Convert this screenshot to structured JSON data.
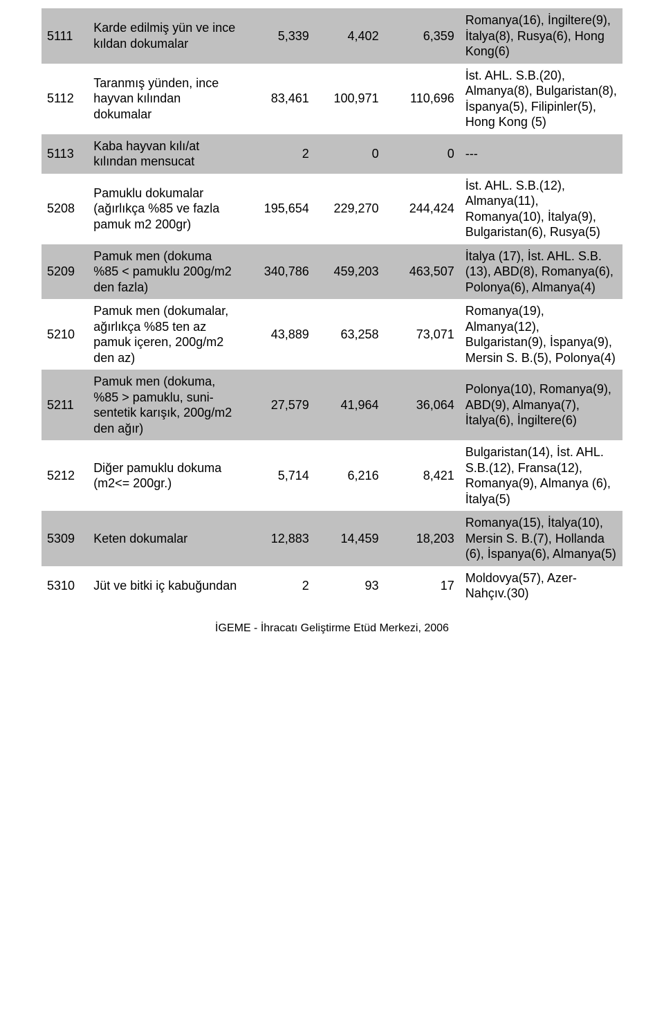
{
  "table": {
    "columns_count": 6,
    "col_widths_pct": [
      8,
      27,
      12,
      12,
      13,
      28
    ],
    "col_align": [
      "left",
      "left",
      "right",
      "right",
      "right",
      "left"
    ],
    "row_bg_colors": {
      "normal": "#ffffff",
      "alt": "#c0c0c0"
    },
    "text_color": "#000000",
    "font_size_pt": 14,
    "rows": [
      {
        "alt": true,
        "code": "5111",
        "desc": "Karde edilmiş yün ve ince kıldan dokumalar",
        "v1": "5,339",
        "v2": "4,402",
        "v3": "6,359",
        "notes": "Romanya(16), İngiltere(9), İtalya(8), Rusya(6), Hong Kong(6)"
      },
      {
        "alt": false,
        "code": "5112",
        "desc": "Taranmış yünden, ince hayvan kılından dokumalar",
        "v1": "83,461",
        "v2": "100,971",
        "v3": "110,696",
        "notes": "İst. AHL. S.B.(20), Almanya(8), Bulgaristan(8), İspanya(5), Filipinler(5), Hong Kong (5)"
      },
      {
        "alt": true,
        "code": "5113",
        "desc": "Kaba hayvan kılı/at kılından mensucat",
        "v1": "2",
        "v2": "0",
        "v3": "0",
        "notes": "---"
      },
      {
        "alt": false,
        "code": "5208",
        "desc": "Pamuklu dokumalar (ağırlıkça %85 ve fazla pamuk m2 200gr)",
        "v1": "195,654",
        "v2": "229,270",
        "v3": "244,424",
        "notes": "İst. AHL. S.B.(12), Almanya(11), Romanya(10), İtalya(9), Bulgaristan(6), Rusya(5)"
      },
      {
        "alt": true,
        "code": "5209",
        "desc": "Pamuk men (dokuma %85 < pamuklu 200g/m2 den fazla)",
        "v1": "340,786",
        "v2": "459,203",
        "v3": "463,507",
        "notes": "İtalya (17), İst. AHL. S.B.(13), ABD(8), Romanya(6), Polonya(6), Almanya(4)"
      },
      {
        "alt": false,
        "code": "5210",
        "desc": "Pamuk men (dokumalar, ağırlıkça %85 ten az pamuk içeren, 200g/m2 den az)",
        "v1": "43,889",
        "v2": "63,258",
        "v3": "73,071",
        "notes": "Romanya(19), Almanya(12), Bulgaristan(9), İspanya(9), Mersin S. B.(5), Polonya(4)"
      },
      {
        "alt": true,
        "code": "5211",
        "desc": "Pamuk men (dokuma, %85 > pamuklu, suni-sentetik karışık, 200g/m2 den ağır)",
        "v1": "27,579",
        "v2": "41,964",
        "v3": "36,064",
        "notes": "Polonya(10), Romanya(9), ABD(9), Almanya(7), İtalya(6), İngiltere(6)"
      },
      {
        "alt": false,
        "code": "5212",
        "desc": "Diğer pamuklu dokuma (m2<= 200gr.)",
        "v1": "5,714",
        "v2": "6,216",
        "v3": "8,421",
        "notes": "Bulgaristan(14), İst. AHL. S.B.(12), Fransa(12), Romanya(9), Almanya (6), İtalya(5)"
      },
      {
        "alt": true,
        "code": "5309",
        "desc": "Keten dokumalar",
        "v1": "12,883",
        "v2": "14,459",
        "v3": "18,203",
        "notes": "Romanya(15), İtalya(10), Mersin S. B.(7), Hollanda (6), İspanya(6), Almanya(5)"
      },
      {
        "alt": false,
        "code": "5310",
        "desc": "Jüt ve bitki iç kabuğundan",
        "v1": "2",
        "v2": "93",
        "v3": "17",
        "notes": "Moldovya(57), Azer-Nahçıv.(30)"
      }
    ]
  },
  "footer": "İGEME - İhracatı Geliştirme Etüd Merkezi, 2006"
}
